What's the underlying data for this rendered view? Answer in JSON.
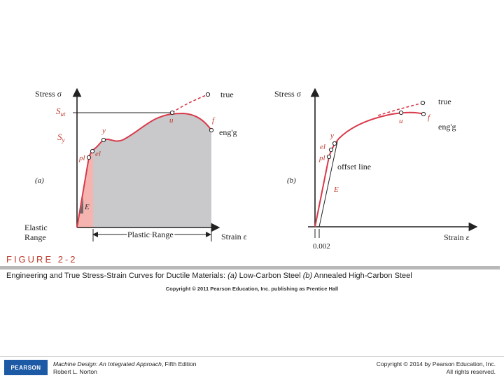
{
  "panel_a": {
    "ylabel": "Stress σ",
    "xlabel": "Strain ε",
    "tag": "(a)",
    "su": "S",
    "su_sub": "ut",
    "sy": "S",
    "sy_sub": "y",
    "pt_u": "u",
    "pt_f": "f",
    "pt_y": "y",
    "pt_el": "el",
    "pt_pl": "pl",
    "pt_E": "E",
    "true_label": "true",
    "engg_label": "eng'g",
    "elastic_line1": "Elastic",
    "elastic_line2": "Range",
    "plastic_label": "Plastic Range"
  },
  "panel_b": {
    "ylabel": "Stress σ",
    "xlabel": "Strain ε",
    "tag": "(b)",
    "pt_u": "u",
    "pt_f": "f",
    "pt_y": "y",
    "pt_el": "el",
    "pt_pl": "pl",
    "pt_E": "E",
    "true_label": "true",
    "engg_label": "eng'g",
    "offset_label": "offset line",
    "offset_value": "0.002"
  },
  "figure": {
    "number": "FIGURE 2-2",
    "caption_main": "Engineering and True Stress-Strain Curves for Ductile Materials:  ",
    "caption_a_tag": "(a)",
    "caption_a": " Low-Carbon Steel  ",
    "caption_b_tag": "(b)",
    "caption_b": " Annealed High-Carbon Steel",
    "copyright": "Copyright © 2011 Pearson Education, Inc. publishing as Prentice Hall"
  },
  "footer": {
    "logo": "PEARSON",
    "book_title": "Machine Design: An Integrated Approach",
    "book_edition": ", Fifth Edition",
    "author": "Robert L. Norton",
    "copyright_line1": "Copyright © 2014 by Pearson Education, Inc.",
    "copyright_line2": "All rights reserved."
  },
  "colors": {
    "curve": "#d83a4a",
    "elastic_fill": "#f6b4b0",
    "plastic_fill": "#c9c9cc",
    "axis": "#222222",
    "title_accent": "#c0392b",
    "logo_bg": "#1d5aa6"
  }
}
